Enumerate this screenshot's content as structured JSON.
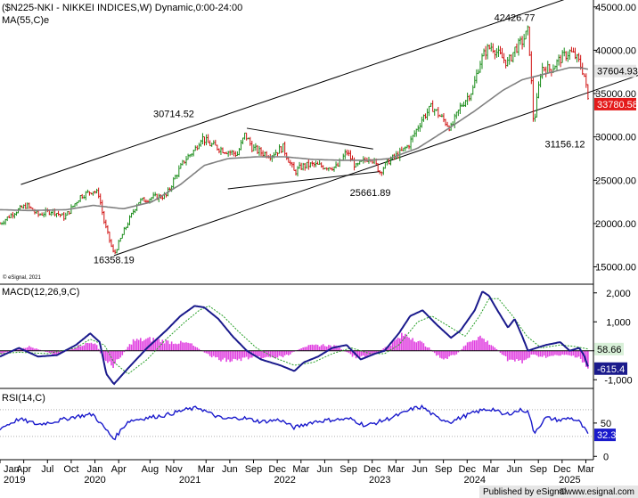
{
  "chart_data": [
    {
      "type": "line",
      "title": "($N225-NKI - NIKKEI INDICES,W) Dynamic,0:00-24:00",
      "indicator_label": "MA(55,C)e",
      "watermark": "© eSignal, 2021",
      "y_ticks": [
        15000,
        20000,
        25000,
        30000,
        35000,
        40000,
        45000
      ],
      "y_tick_labels": [
        "15000.00",
        "20000.00",
        "25000.00",
        "30000.00",
        "35000.00",
        "40000.00",
        "45000.00"
      ],
      "ylim": [
        13000,
        45800
      ],
      "x_range": [
        2019.0,
        2025.25
      ],
      "price_waypoints": {
        "x": [
          2019.0,
          2019.15,
          2019.28,
          2019.4,
          2019.55,
          2019.68,
          2019.85,
          2019.98,
          2020.04,
          2020.1,
          2020.2,
          2020.3,
          2020.45,
          2020.6,
          2020.75,
          2020.85,
          2020.95,
          2021.05,
          2021.12,
          2021.2,
          2021.35,
          2021.5,
          2021.58,
          2021.66,
          2021.75,
          2021.85,
          2021.98,
          2022.1,
          2022.18,
          2022.28,
          2022.4,
          2022.55,
          2022.65,
          2022.75,
          2022.9,
          2023.0,
          2023.1,
          2023.2,
          2023.3,
          2023.38,
          2023.45,
          2023.55,
          2023.65,
          2023.75,
          2023.85,
          2023.98,
          2024.05,
          2024.12,
          2024.18,
          2024.25,
          2024.35,
          2024.42,
          2024.5,
          2024.56,
          2024.58,
          2024.62,
          2024.7,
          2024.8,
          2024.9,
          2025.0,
          2025.05,
          2025.1,
          2025.15,
          2025.2
        ],
        "y": [
          20000,
          21300,
          22100,
          21000,
          21500,
          20700,
          23200,
          23800,
          23400,
          20000,
          16400,
          19000,
          22500,
          23000,
          23200,
          25500,
          27400,
          28500,
          30000,
          29200,
          28500,
          28000,
          30300,
          28700,
          28200,
          27900,
          28800,
          25900,
          26600,
          26800,
          26600,
          26500,
          28300,
          26500,
          27800,
          26000,
          27300,
          28000,
          29000,
          30700,
          32200,
          33500,
          32200,
          31000,
          33500,
          35500,
          38500,
          40000,
          40500,
          39500,
          38500,
          40100,
          41000,
          42200,
          39500,
          31300,
          38000,
          37800,
          39000,
          39800,
          39400,
          38600,
          37300,
          33800
        ]
      },
      "ma_waypoints": {
        "x": [
          2019.0,
          2019.3,
          2019.7,
          2019.98,
          2020.3,
          2020.6,
          2020.9,
          2021.15,
          2021.4,
          2021.7,
          2022.0,
          2022.3,
          2022.6,
          2022.9,
          2023.1,
          2023.4,
          2023.7,
          2024.0,
          2024.3,
          2024.5,
          2024.75,
          2025.0,
          2025.1,
          2025.2
        ],
        "y": [
          21600,
          21500,
          21600,
          22100,
          21700,
          22500,
          24500,
          26700,
          27500,
          27700,
          27700,
          27400,
          27300,
          27300,
          27500,
          28700,
          30800,
          33000,
          35400,
          36600,
          37300,
          38000,
          38000,
          37800
        ]
      },
      "last_price": "37604.93",
      "last_close": "33780.58",
      "annotations": [
        {
          "text": "42426.77",
          "x": 2024.42,
          "y": 43400
        },
        {
          "text": "30714.52",
          "x": 2020.83,
          "y": 32300
        },
        {
          "text": "31156.12",
          "x": 2024.95,
          "y": 28800
        },
        {
          "text": "25661.89",
          "x": 2022.9,
          "y": 23200
        },
        {
          "text": "16358.19",
          "x": 2020.2,
          "y": 15400
        }
      ],
      "trend_lines": [
        {
          "x": [
            2019.22,
            2025.25
          ],
          "y": [
            24500,
            47000
          ]
        },
        {
          "x": [
            2020.2,
            2025.8
          ],
          "y": [
            16300,
            37400
          ]
        },
        {
          "x": [
            2021.6,
            2022.93
          ],
          "y": [
            31000,
            28600
          ]
        },
        {
          "x": [
            2021.4,
            2023.0
          ],
          "y": [
            24000,
            26000
          ]
        }
      ],
      "xlabel": "",
      "ylabel": "",
      "grid": false
    },
    {
      "type": "line",
      "title": "MACD(12,26,9,C)",
      "y_ticks": [
        2000,
        1000,
        0,
        -1000
      ],
      "y_tick_labels": [
        "2,000",
        "1,000",
        "0",
        "-1,000"
      ],
      "ylim": [
        -1300,
        2300
      ],
      "macd_waypoints": {
        "x": [
          2019.0,
          2019.2,
          2019.4,
          2019.6,
          2019.8,
          2019.95,
          2020.05,
          2020.12,
          2020.2,
          2020.35,
          2020.55,
          2020.75,
          2020.9,
          2021.05,
          2021.15,
          2021.3,
          2021.45,
          2021.6,
          2021.75,
          2021.95,
          2022.1,
          2022.2,
          2022.35,
          2022.5,
          2022.65,
          2022.8,
          2022.95,
          2023.05,
          2023.2,
          2023.32,
          2023.45,
          2023.6,
          2023.75,
          2023.85,
          2024.0,
          2024.08,
          2024.15,
          2024.22,
          2024.35,
          2024.42,
          2024.5,
          2024.56,
          2024.65,
          2024.75,
          2024.9,
          2025.0,
          2025.1,
          2025.15,
          2025.2
        ],
        "y": [
          -200,
          100,
          -200,
          -150,
          200,
          600,
          300,
          -800,
          -1150,
          -600,
          100,
          700,
          1200,
          1550,
          1500,
          1100,
          500,
          0,
          -300,
          -500,
          -700,
          -400,
          -200,
          100,
          200,
          -300,
          -100,
          0,
          600,
          1200,
          1400,
          900,
          450,
          700,
          1400,
          2050,
          1900,
          1500,
          800,
          1100,
          500,
          0,
          100,
          200,
          300,
          0,
          100,
          -150,
          -615
        ]
      },
      "signal_waypoints": {
        "x": [
          2019.0,
          2019.2,
          2019.5,
          2019.8,
          2019.95,
          2020.1,
          2020.2,
          2020.35,
          2020.55,
          2020.75,
          2020.95,
          2021.1,
          2021.2,
          2021.35,
          2021.5,
          2021.7,
          2021.9,
          2022.1,
          2022.3,
          2022.5,
          2022.7,
          2022.9,
          2023.05,
          2023.2,
          2023.4,
          2023.55,
          2023.75,
          2023.9,
          2024.05,
          2024.15,
          2024.25,
          2024.4,
          2024.55,
          2024.7,
          2024.9,
          2025.05,
          2025.2
        ],
        "y": [
          -100,
          -50,
          -100,
          100,
          400,
          200,
          -400,
          -800,
          -300,
          400,
          1000,
          1400,
          1550,
          1200,
          700,
          100,
          -250,
          -500,
          -400,
          -100,
          100,
          -100,
          -100,
          200,
          1000,
          1200,
          800,
          500,
          1200,
          1800,
          1800,
          1200,
          500,
          100,
          200,
          150,
          59
        ]
      },
      "histogram_levels": {
        "x": [
          2019.0,
          2019.3,
          2019.6,
          2019.85,
          2020.0,
          2020.1,
          2020.2,
          2020.4,
          2020.6,
          2020.8,
          2021.0,
          2021.2,
          2021.3,
          2021.45,
          2021.6,
          2021.8,
          2022.0,
          2022.2,
          2022.4,
          2022.55,
          2022.75,
          2022.95,
          2023.1,
          2023.25,
          2023.35,
          2023.5,
          2023.65,
          2023.8,
          2023.95,
          2024.05,
          2024.2,
          2024.35,
          2024.5,
          2024.6,
          2024.75,
          2024.95,
          2025.1,
          2025.2
        ],
        "y": [
          -120,
          150,
          -150,
          200,
          300,
          -350,
          -500,
          350,
          400,
          300,
          250,
          -150,
          -300,
          -350,
          -250,
          -250,
          -200,
          150,
          200,
          150,
          -250,
          -100,
          200,
          550,
          450,
          150,
          -300,
          -150,
          350,
          500,
          150,
          -300,
          -400,
          -150,
          -200,
          -150,
          -200,
          -650
        ]
      },
      "signal_value": "58.66",
      "macd_value": "-615.4"
    },
    {
      "type": "line",
      "title": "RSI(14,C)",
      "y_ticks": [
        50,
        0
      ],
      "y_tick_labels": [
        "50",
        "0"
      ],
      "ylim": [
        -5,
        102
      ],
      "reference_levels": [
        70,
        30
      ],
      "rsi_waypoints": {
        "x": [
          2019.0,
          2019.2,
          2019.4,
          2019.6,
          2019.8,
          2019.98,
          2020.08,
          2020.2,
          2020.35,
          2020.55,
          2020.75,
          2020.95,
          2021.1,
          2021.2,
          2021.35,
          2021.55,
          2021.75,
          2021.95,
          2022.1,
          2022.3,
          2022.5,
          2022.7,
          2022.85,
          2022.95,
          2023.1,
          2023.25,
          2023.35,
          2023.45,
          2023.6,
          2023.75,
          2023.9,
          2024.0,
          2024.1,
          2024.2,
          2024.3,
          2024.4,
          2024.5,
          2024.57,
          2024.62,
          2024.75,
          2024.9,
          2025.0,
          2025.1,
          2025.2
        ],
        "y": [
          42,
          56,
          48,
          53,
          60,
          63,
          46,
          26,
          53,
          58,
          62,
          70,
          73,
          65,
          56,
          58,
          52,
          55,
          43,
          52,
          55,
          56,
          46,
          50,
          57,
          65,
          72,
          74,
          58,
          52,
          61,
          66,
          70,
          71,
          62,
          66,
          70,
          66,
          35,
          58,
          54,
          58,
          52,
          32
        ]
      },
      "last_value": "32.3"
    },
    {
      "type": "axis",
      "months": [
        "Jan",
        "Apr",
        "Jul",
        "Oct",
        "Jan",
        "Apr",
        "Aug",
        "Nov",
        "Mar",
        "Jun",
        "Sep",
        "Dec",
        "Mar",
        "Jun",
        "Sep",
        "Dec",
        "Mar",
        "Jun",
        "Sep",
        "Dec",
        "Mar",
        "Jun",
        "Sep",
        "Dec",
        "Mar"
      ],
      "month_positions": [
        2019.0,
        2019.25,
        2019.5,
        2019.75,
        2020.0,
        2020.25,
        2020.58,
        2020.83,
        2021.17,
        2021.42,
        2021.67,
        2021.92,
        2022.17,
        2022.42,
        2022.67,
        2022.92,
        2023.17,
        2023.42,
        2023.67,
        2023.92,
        2024.17,
        2024.42,
        2024.67,
        2024.92,
        2025.17
      ],
      "years": [
        "2019",
        "2020",
        "2021",
        "2022",
        "2023",
        "2024",
        "2025"
      ],
      "year_positions": [
        2019.0,
        2020.0,
        2021.0,
        2022.0,
        2023.0,
        2024.0,
        2025.0
      ]
    }
  ],
  "footer": {
    "published": "Published by eSignal",
    "copyright": "©www.esignal.com"
  }
}
